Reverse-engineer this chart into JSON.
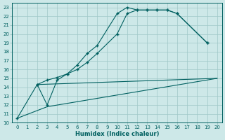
{
  "bg_color": "#cde8e8",
  "grid_color": "#a0c8c8",
  "line_color": "#006060",
  "xlabel": "Humidex (Indice chaleur)",
  "xlim": [
    -0.5,
    20.5
  ],
  "ylim": [
    10,
    23.5
  ],
  "xticks": [
    0,
    1,
    2,
    3,
    4,
    5,
    6,
    7,
    8,
    9,
    10,
    11,
    12,
    13,
    14,
    15,
    16,
    17,
    18,
    19,
    20
  ],
  "yticks": [
    10,
    11,
    12,
    13,
    14,
    15,
    16,
    17,
    18,
    19,
    20,
    21,
    22,
    23
  ],
  "curve1_x": [
    0,
    2,
    3,
    4,
    5,
    6,
    7,
    8,
    10,
    11,
    12,
    13,
    14,
    15,
    16,
    19
  ],
  "curve1_y": [
    10.5,
    14.3,
    12.0,
    14.8,
    15.5,
    16.5,
    17.8,
    18.7,
    22.3,
    23.0,
    22.7,
    22.7,
    22.7,
    22.7,
    22.3,
    19.0
  ],
  "curve2_x": [
    2,
    3,
    4,
    5,
    6,
    7,
    8,
    10,
    11,
    12,
    13,
    14,
    15,
    16,
    19
  ],
  "curve2_y": [
    14.3,
    14.8,
    15.1,
    15.5,
    16.0,
    16.8,
    17.8,
    20.0,
    22.3,
    22.7,
    22.7,
    22.7,
    22.7,
    22.3,
    19.0
  ],
  "line3_x": [
    2,
    20
  ],
  "line3_y": [
    14.3,
    15.0
  ],
  "line4_x": [
    0,
    3,
    20
  ],
  "line4_y": [
    10.5,
    11.8,
    15.0
  ]
}
